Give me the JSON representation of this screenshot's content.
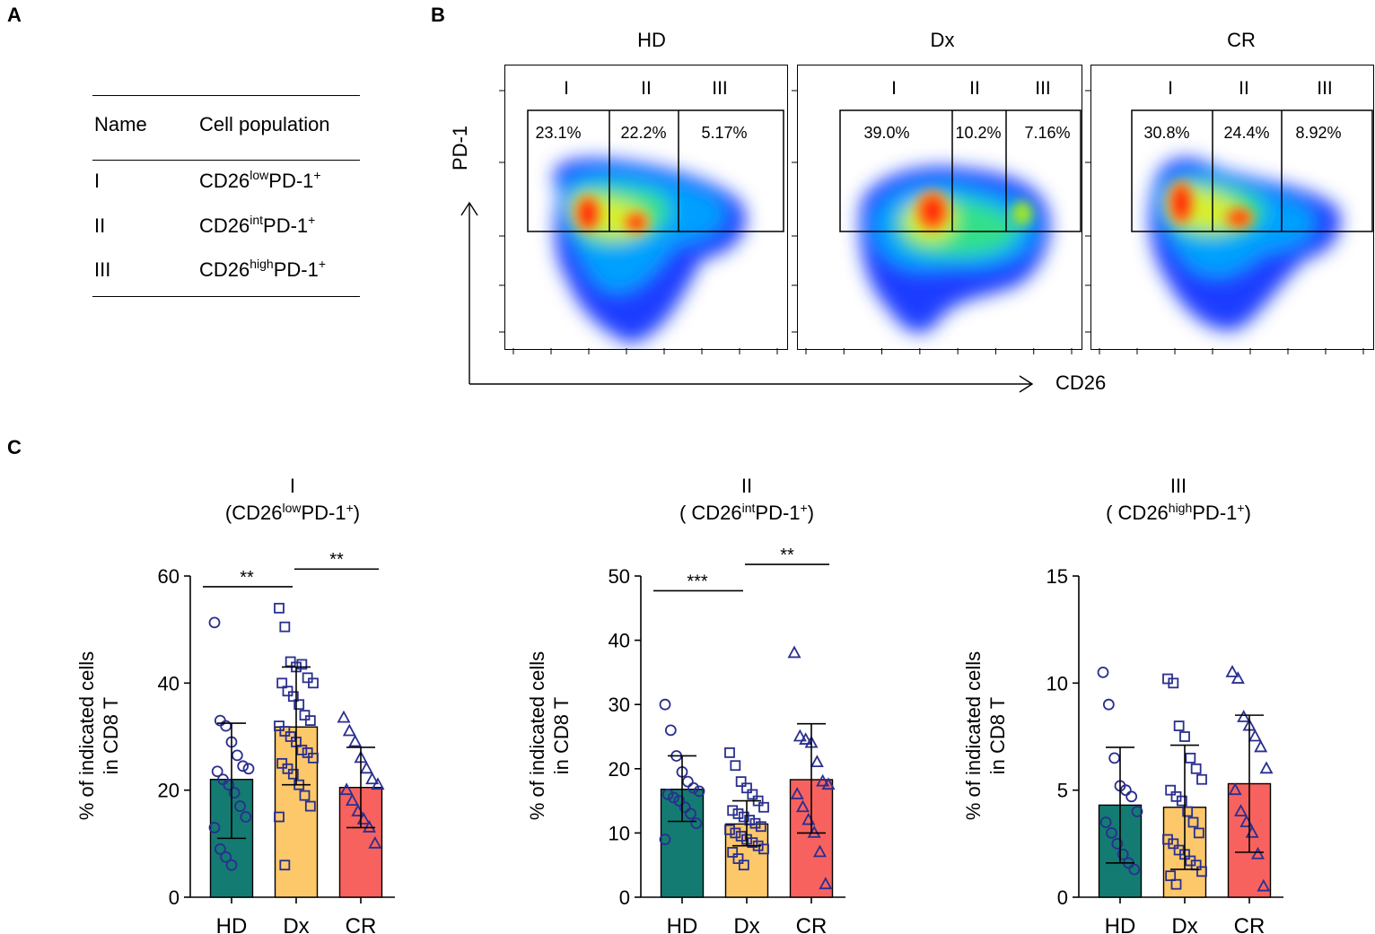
{
  "panel_labels": {
    "a": "A",
    "b": "B",
    "c": "C"
  },
  "table": {
    "headers": [
      "Name",
      "Cell population"
    ],
    "rows": [
      {
        "name": "I",
        "base": "CD26",
        "sup1": "low",
        "mid": "PD-1",
        "sup2": "+"
      },
      {
        "name": "II",
        "base": "CD26",
        "sup1": "int",
        "mid": "PD-1",
        "sup2": "+"
      },
      {
        "name": "III",
        "base": "CD26",
        "sup1": "high",
        "mid": "PD-1",
        "sup2": "+"
      }
    ]
  },
  "flow": {
    "y_axis_label": "PD-1",
    "x_axis_label": "CD26",
    "gate_labels": [
      "I",
      "II",
      "III"
    ],
    "plots": [
      {
        "title": "HD",
        "percentages": [
          "23.1%",
          "22.2%",
          "5.17%"
        ]
      },
      {
        "title": "Dx",
        "percentages": [
          "39.0%",
          "10.2%",
          "7.16%"
        ]
      },
      {
        "title": "CR",
        "percentages": [
          "30.8%",
          "24.4%",
          "8.92%"
        ]
      }
    ]
  },
  "chart_data": [
    {
      "type": "bar",
      "title_line1": "I",
      "title_line2": {
        "pre": "(CD26",
        "sup1": "low",
        "mid": "PD-1",
        "sup2": "+",
        "post": ")"
      },
      "ylabel_line1": "% of indicated cells",
      "ylabel_line2": "in CD8  T",
      "ylim": [
        0,
        60
      ],
      "yticks": [
        0,
        20,
        40,
        60
      ],
      "categories": [
        "HD",
        "Dx",
        "CR"
      ],
      "colors": [
        "#137b72",
        "#fcc86a",
        "#f8625e"
      ],
      "markers": [
        "circle",
        "square",
        "triangle"
      ],
      "means": [
        22,
        31.8,
        20.5
      ],
      "sd": [
        [
          11,
          32.5
        ],
        [
          21,
          43
        ],
        [
          13,
          28
        ]
      ],
      "points": [
        [
          51.3,
          33,
          32,
          29,
          26.5,
          24.5,
          24,
          23.5,
          22,
          21,
          19.5,
          17,
          15,
          13,
          9,
          7.5,
          6
        ],
        [
          54,
          50.5,
          44,
          43,
          43.5,
          41,
          40,
          40,
          38.5,
          37.5,
          36,
          34,
          33,
          32,
          31,
          30,
          29,
          27.5,
          27,
          26,
          25,
          24,
          23,
          21,
          19,
          17,
          15,
          6
        ],
        [
          33.5,
          31,
          29,
          26,
          24,
          22,
          21,
          20,
          18,
          16,
          14.5,
          13,
          10
        ]
      ],
      "significance": [
        {
          "from": 0,
          "to": 1,
          "label": "**",
          "y": 58
        },
        {
          "from": 1,
          "to": 2,
          "label": "**",
          "y": 61.3
        }
      ]
    },
    {
      "type": "bar",
      "title_line1": "II",
      "title_line2": {
        "pre": "( CD26",
        "sup1": "int",
        "mid": "PD-1",
        "sup2": "+",
        "post": ")"
      },
      "ylabel_line1": "% of indicated cells",
      "ylabel_line2": "in CD8  T",
      "ylim": [
        0,
        50
      ],
      "yticks": [
        0,
        10,
        20,
        30,
        40,
        50
      ],
      "categories": [
        "HD",
        "Dx",
        "CR"
      ],
      "colors": [
        "#137b72",
        "#fcc86a",
        "#f8625e"
      ],
      "markers": [
        "circle",
        "square",
        "triangle"
      ],
      "means": [
        16.8,
        11.4,
        18.3
      ],
      "sd": [
        [
          11.8,
          22
        ],
        [
          8,
          15
        ],
        [
          10,
          27
        ]
      ],
      "points": [
        [
          30,
          26,
          22,
          19.5,
          18,
          17,
          16.5,
          16,
          15.5,
          15,
          14,
          13,
          11.5,
          9
        ],
        [
          22.5,
          20.5,
          18,
          17,
          16,
          15,
          14,
          13.5,
          13,
          12.5,
          12,
          11.5,
          11,
          10.5,
          10,
          9.5,
          9,
          8.5,
          8,
          7.5,
          7,
          6,
          5
        ],
        [
          38,
          25,
          24.5,
          24,
          21,
          18,
          17.5,
          16,
          14,
          12,
          10,
          7,
          2
        ]
      ],
      "significance": [
        {
          "from": 0,
          "to": 1,
          "label": "***",
          "y": 47.7
        },
        {
          "from": 1,
          "to": 2,
          "label": "**",
          "y": 51.8
        }
      ]
    },
    {
      "type": "bar",
      "title_line1": "III",
      "title_line2": {
        "pre": "( CD26",
        "sup1": "high",
        "mid": "PD-1",
        "sup2": "+",
        "post": ")"
      },
      "ylabel_line1": "% of indicated cells",
      "ylabel_line2": "in CD8  T",
      "ylim": [
        0,
        15
      ],
      "yticks": [
        0,
        5,
        10,
        15
      ],
      "categories": [
        "HD",
        "Dx",
        "CR"
      ],
      "colors": [
        "#137b72",
        "#fcc86a",
        "#f8625e"
      ],
      "markers": [
        "circle",
        "square",
        "triangle"
      ],
      "means": [
        4.3,
        4.2,
        5.3
      ],
      "sd": [
        [
          1.6,
          7
        ],
        [
          1.3,
          7.1
        ],
        [
          2.1,
          8.5
        ]
      ],
      "points": [
        [
          10.5,
          9,
          6.5,
          5.2,
          5,
          4.7,
          4,
          3.5,
          3,
          2.5,
          2,
          1.6,
          1.3
        ],
        [
          10.2,
          10,
          8,
          7.5,
          6.5,
          6,
          5.5,
          5,
          4.7,
          4.5,
          4,
          3.5,
          3,
          2.7,
          2.5,
          2.2,
          2,
          1.7,
          1.5,
          1.2,
          1,
          0.6
        ],
        [
          10.5,
          10.2,
          8.4,
          8,
          7.5,
          7,
          6,
          5,
          4,
          3.5,
          3,
          2,
          0.5
        ]
      ],
      "significance": []
    }
  ]
}
